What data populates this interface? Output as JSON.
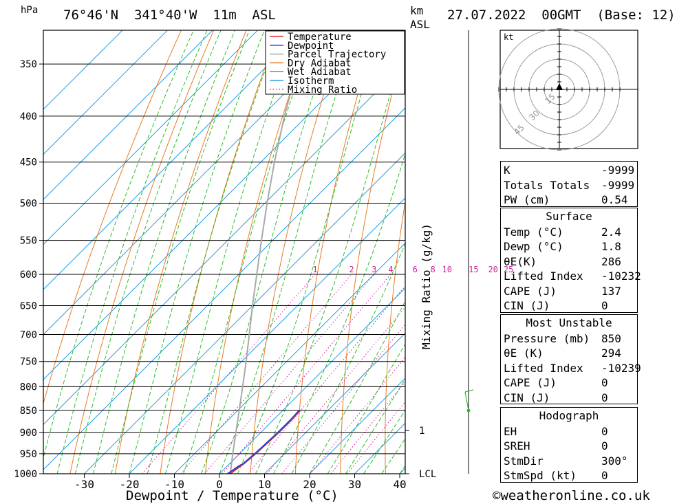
{
  "header": {
    "pressure_unit": "hPa",
    "location": "76°46'N  341°40'W  11m  ASL",
    "km_label": "km",
    "asl_label": "ASL",
    "datetime": "27.07.2022  00GMT  (Base: 12)"
  },
  "chart_data": {
    "type": "line",
    "title": "",
    "xlabel": "Dewpoint / Temperature (°C)",
    "ylabel": "hPa",
    "right_label": "Mixing Ratio (g/kg)",
    "x_ticks": [
      -30,
      -20,
      -10,
      0,
      10,
      20,
      30,
      40
    ],
    "y_ticks": [
      350,
      400,
      450,
      500,
      550,
      600,
      650,
      700,
      750,
      800,
      850,
      900,
      950,
      1000
    ],
    "xlim": [
      -40,
      40
    ],
    "ylim": [
      1000,
      300
    ],
    "y_scale": "log",
    "skew": "45 degrees",
    "mixing_ratio_labels": [
      "1",
      "2",
      "3",
      "4",
      "6",
      "8",
      "10",
      "15",
      "20",
      "25"
    ],
    "mixing_ratio_values": [
      1,
      2,
      3,
      4,
      6,
      8,
      10,
      15,
      20,
      25
    ],
    "km_marks": [
      {
        "label": "1",
        "pressure": 895
      },
      {
        "label": "LCL",
        "pressure": 1000
      }
    ],
    "legend": {
      "placement": "top-right",
      "entries": [
        {
          "label": "Temperature",
          "color": "#e8262a",
          "style": "solid"
        },
        {
          "label": "Dewpoint",
          "color": "#2a3fd6",
          "style": "solid"
        },
        {
          "label": "Parcel Trajectory",
          "color": "#a9a9a9",
          "style": "solid"
        },
        {
          "label": "Dry Adiabat",
          "color": "#ea7a1e",
          "style": "solid"
        },
        {
          "label": "Wet Adiabat",
          "color": "#2bbf2b",
          "style": "solid"
        },
        {
          "label": "Isotherm",
          "color": "#2b9fe0",
          "style": "solid"
        },
        {
          "label": "Mixing Ratio",
          "color": "#d020a0",
          "style": "dotted"
        }
      ]
    },
    "series": [
      {
        "name": "Temperature",
        "points": [
          {
            "p": 1000,
            "t": 2.4
          },
          {
            "p": 980,
            "t": 3.0
          },
          {
            "p": 975,
            "t": 3.2
          },
          {
            "p": 950,
            "t": 3.6
          },
          {
            "p": 900,
            "t": 4.0
          },
          {
            "p": 870,
            "t": 4.0
          },
          {
            "p": 850,
            "t": 3.8
          }
        ]
      },
      {
        "name": "Dewpoint",
        "points": [
          {
            "p": 1000,
            "t": 1.8
          },
          {
            "p": 980,
            "t": 2.6
          },
          {
            "p": 975,
            "t": 3.0
          },
          {
            "p": 950,
            "t": 3.4
          },
          {
            "p": 900,
            "t": 3.8
          },
          {
            "p": 870,
            "t": 3.8
          },
          {
            "p": 850,
            "t": 3.6
          }
        ]
      },
      {
        "name": "Parcel Trajectory",
        "points": [
          {
            "p": 1000,
            "t": 2.4
          },
          {
            "p": 950,
            "t": -1.5
          },
          {
            "p": 900,
            "t": -5.5
          },
          {
            "p": 850,
            "t": -9.7
          },
          {
            "p": 800,
            "t": -14.2
          },
          {
            "p": 750,
            "t": -19
          },
          {
            "p": 700,
            "t": -24.3
          },
          {
            "p": 650,
            "t": -30
          },
          {
            "p": 600,
            "t": -36
          },
          {
            "p": 550,
            "t": -42.5
          },
          {
            "p": 500,
            "t": -49.5
          },
          {
            "p": 450,
            "t": -57
          },
          {
            "p": 400,
            "t": -65
          },
          {
            "p": 350,
            "t": -73.5
          },
          {
            "p": 300,
            "t": -83
          }
        ]
      }
    ]
  },
  "hodograph": {
    "unit_label": "kt",
    "ring_labels": [
      "15",
      "30",
      "45"
    ]
  },
  "indices": {
    "rows": [
      {
        "label": "K",
        "value": "-9999"
      },
      {
        "label": "Totals Totals",
        "value": "-9999"
      },
      {
        "label": "PW (cm)",
        "value": "0.54"
      }
    ]
  },
  "surface": {
    "title": "Surface",
    "rows": [
      {
        "label": "Temp (°C)",
        "value": "2.4"
      },
      {
        "label": "Dewp (°C)",
        "value": "1.8"
      },
      {
        "label": "θE(K)",
        "value": "286"
      },
      {
        "label": "Lifted Index",
        "value": "-10232"
      },
      {
        "label": "CAPE (J)",
        "value": "137"
      },
      {
        "label": "CIN (J)",
        "value": "0"
      }
    ]
  },
  "most_unstable": {
    "title": "Most Unstable",
    "rows": [
      {
        "label": "Pressure (mb)",
        "value": "850"
      },
      {
        "label": "θE (K)",
        "value": "294"
      },
      {
        "label": "Lifted Index",
        "value": "-10239"
      },
      {
        "label": "CAPE (J)",
        "value": "0"
      },
      {
        "label": "CIN (J)",
        "value": "0"
      }
    ]
  },
  "hodograph_table": {
    "title": "Hodograph",
    "rows": [
      {
        "label": "EH",
        "value": "0"
      },
      {
        "label": "SREH",
        "value": "0"
      },
      {
        "label": "StmDir",
        "value": "300°"
      },
      {
        "label": "StmSpd (kt)",
        "value": "0"
      }
    ]
  },
  "footer": {
    "copyright": "©weatheronline.co.uk"
  }
}
